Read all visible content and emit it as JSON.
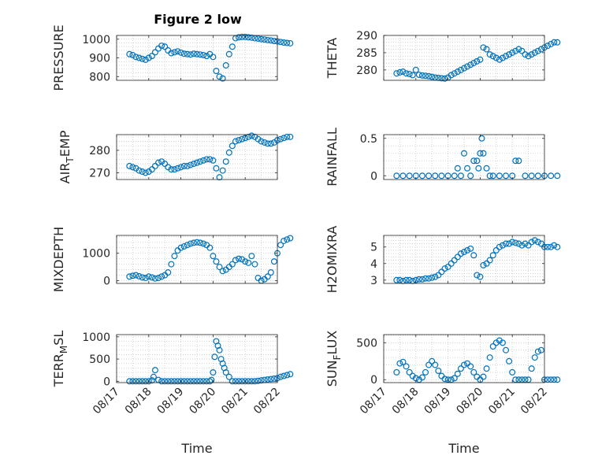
{
  "title": "Figure 2 low",
  "xlabel": "Time",
  "x_ticks": [
    "08/17",
    "08/18",
    "08/19",
    "08/20",
    "08/21",
    "08/22"
  ],
  "marker": "open-circle",
  "series_color": "#0072BD",
  "grid": "dotted",
  "chart_data": [
    {
      "type": "scatter",
      "ylabel": "PRESSURE",
      "ylim": [
        780,
        1020
      ],
      "yticks": [
        800,
        900,
        1000
      ],
      "x": [
        0.4,
        0.5,
        0.6,
        0.7,
        0.8,
        0.9,
        1.0,
        1.1,
        1.2,
        1.3,
        1.4,
        1.5,
        1.6,
        1.7,
        1.8,
        1.9,
        2.0,
        2.1,
        2.2,
        2.3,
        2.4,
        2.5,
        2.6,
        2.7,
        2.8,
        2.9,
        3.0,
        3.1,
        3.2,
        3.3,
        3.4,
        3.5,
        3.6,
        3.7,
        3.8,
        3.9,
        4.0,
        4.1,
        4.2,
        4.3,
        4.4,
        4.5,
        4.6,
        4.7,
        4.8,
        4.9,
        5.0,
        5.1,
        5.2,
        5.3,
        5.4
      ],
      "y": [
        920,
        915,
        905,
        900,
        895,
        890,
        900,
        910,
        930,
        950,
        965,
        960,
        940,
        925,
        930,
        935,
        928,
        922,
        920,
        918,
        922,
        920,
        918,
        915,
        910,
        920,
        905,
        830,
        800,
        790,
        860,
        920,
        960,
        1005,
        1010,
        1012,
        1012,
        1010,
        1008,
        1005,
        1003,
        1000,
        998,
        995,
        993,
        990,
        988,
        985,
        982,
        980,
        978
      ]
    },
    {
      "type": "scatter",
      "ylabel": "THETA",
      "ylim": [
        277,
        290
      ],
      "yticks": [
        280,
        285,
        290
      ],
      "x": [
        0.4,
        0.5,
        0.6,
        0.7,
        0.8,
        0.9,
        1.0,
        1.1,
        1.2,
        1.3,
        1.4,
        1.5,
        1.6,
        1.7,
        1.8,
        1.9,
        2.0,
        2.1,
        2.2,
        2.3,
        2.4,
        2.5,
        2.6,
        2.7,
        2.8,
        2.9,
        3.0,
        3.1,
        3.2,
        3.3,
        3.4,
        3.5,
        3.6,
        3.7,
        3.8,
        3.9,
        4.0,
        4.1,
        4.2,
        4.3,
        4.4,
        4.5,
        4.6,
        4.7,
        4.8,
        4.9,
        5.0,
        5.1,
        5.2,
        5.3,
        5.4
      ],
      "y": [
        279,
        279.3,
        279.5,
        279,
        278.8,
        278.5,
        280,
        278.6,
        278.4,
        278.3,
        278.2,
        278,
        277.8,
        277.7,
        277.6,
        277.5,
        277.8,
        278.5,
        279,
        279.5,
        280,
        280.5,
        281,
        281.5,
        282,
        282.5,
        283,
        286.5,
        286,
        284.5,
        284,
        283.5,
        283,
        283.5,
        284,
        284.5,
        285,
        285.5,
        286,
        285.5,
        284.5,
        284,
        284.5,
        285,
        285.5,
        286,
        286.5,
        287,
        287.5,
        288,
        288
      ]
    },
    {
      "type": "scatter",
      "ylabel": "AIR_TEMP",
      "ylim": [
        267,
        287
      ],
      "yticks": [
        270,
        280
      ],
      "x": [
        0.4,
        0.5,
        0.6,
        0.7,
        0.8,
        0.9,
        1.0,
        1.1,
        1.2,
        1.3,
        1.4,
        1.5,
        1.6,
        1.7,
        1.8,
        1.9,
        2.0,
        2.1,
        2.2,
        2.3,
        2.4,
        2.5,
        2.6,
        2.7,
        2.8,
        2.9,
        3.0,
        3.1,
        3.2,
        3.3,
        3.4,
        3.5,
        3.6,
        3.7,
        3.8,
        3.9,
        4.0,
        4.1,
        4.2,
        4.3,
        4.4,
        4.5,
        4.6,
        4.7,
        4.8,
        4.9,
        5.0,
        5.1,
        5.2,
        5.3,
        5.4
      ],
      "y": [
        273,
        272.5,
        272,
        271,
        270.5,
        270,
        270.5,
        271.5,
        273,
        274.5,
        275,
        274,
        272.5,
        271.5,
        271.5,
        272,
        272.5,
        273,
        273,
        273.5,
        274,
        274.5,
        275,
        275.5,
        276,
        276,
        275.5,
        272,
        268,
        271,
        275,
        279,
        282,
        284,
        284.5,
        285,
        285.5,
        286,
        286.5,
        286,
        285,
        284,
        283.5,
        283,
        283,
        283.5,
        284.5,
        285,
        285.5,
        286,
        286
      ]
    },
    {
      "type": "scatter",
      "ylabel": "RAINFALL",
      "ylim": [
        -0.05,
        0.55
      ],
      "yticks": [
        0,
        0.5
      ],
      "x": [
        0.4,
        0.6,
        0.8,
        1.0,
        1.2,
        1.4,
        1.6,
        1.8,
        2.0,
        2.2,
        2.3,
        2.4,
        2.5,
        2.6,
        2.7,
        2.8,
        2.9,
        2.95,
        3.0,
        3.05,
        3.1,
        3.2,
        3.3,
        3.4,
        3.6,
        3.8,
        4.0,
        4.1,
        4.2,
        4.4,
        4.6,
        4.8,
        5.0,
        5.2,
        5.4
      ],
      "y": [
        0,
        0,
        0,
        0,
        0,
        0,
        0,
        0,
        0,
        0,
        0.1,
        0,
        0.3,
        0.1,
        0,
        0.2,
        0.2,
        0.1,
        0.3,
        0.5,
        0.3,
        0.1,
        0,
        0,
        0,
        0,
        0,
        0.2,
        0.2,
        0,
        0,
        0,
        0,
        0,
        0
      ]
    },
    {
      "type": "scatter",
      "ylabel": "MIXDEPTH",
      "ylim": [
        -100,
        1650
      ],
      "yticks": [
        0,
        1000
      ],
      "x": [
        0.4,
        0.5,
        0.6,
        0.7,
        0.8,
        0.9,
        1.0,
        1.1,
        1.2,
        1.3,
        1.4,
        1.5,
        1.6,
        1.7,
        1.8,
        1.9,
        2.0,
        2.1,
        2.2,
        2.3,
        2.4,
        2.5,
        2.6,
        2.7,
        2.8,
        2.9,
        3.0,
        3.1,
        3.2,
        3.3,
        3.4,
        3.5,
        3.6,
        3.7,
        3.8,
        3.9,
        4.0,
        4.1,
        4.2,
        4.3,
        4.4,
        4.5,
        4.6,
        4.7,
        4.8,
        4.9,
        5.0,
        5.1,
        5.2,
        5.3,
        5.4
      ],
      "y": [
        150,
        180,
        200,
        160,
        120,
        100,
        150,
        120,
        80,
        100,
        150,
        200,
        300,
        600,
        900,
        1100,
        1200,
        1250,
        1300,
        1350,
        1380,
        1400,
        1380,
        1350,
        1300,
        1200,
        900,
        700,
        500,
        350,
        400,
        500,
        600,
        750,
        800,
        780,
        700,
        650,
        900,
        600,
        100,
        0,
        50,
        150,
        300,
        700,
        1000,
        1300,
        1450,
        1500,
        1550
      ]
    },
    {
      "type": "scatter",
      "ylabel": "H2OMIXRA",
      "ylim": [
        2.8,
        5.7
      ],
      "yticks": [
        3,
        4,
        5
      ],
      "x": [
        0.4,
        0.5,
        0.6,
        0.7,
        0.8,
        0.9,
        1.0,
        1.1,
        1.2,
        1.3,
        1.4,
        1.5,
        1.6,
        1.7,
        1.8,
        1.9,
        2.0,
        2.1,
        2.2,
        2.3,
        2.4,
        2.5,
        2.6,
        2.7,
        2.8,
        2.9,
        3.0,
        3.1,
        3.2,
        3.3,
        3.4,
        3.5,
        3.6,
        3.7,
        3.8,
        3.9,
        4.0,
        4.1,
        4.2,
        4.3,
        4.4,
        4.5,
        4.6,
        4.7,
        4.8,
        4.9,
        5.0,
        5.1,
        5.2,
        5.3,
        5.4
      ],
      "y": [
        3.0,
        3.0,
        2.95,
        3.0,
        3.0,
        2.95,
        3.0,
        3.05,
        3.05,
        3.1,
        3.1,
        3.15,
        3.2,
        3.3,
        3.5,
        3.7,
        3.8,
        4.0,
        4.2,
        4.4,
        4.6,
        4.7,
        4.8,
        4.9,
        4.5,
        3.3,
        3.2,
        3.9,
        4.0,
        4.2,
        4.5,
        4.8,
        5.0,
        5.1,
        5.2,
        5.2,
        5.3,
        5.25,
        5.2,
        5.1,
        5.2,
        5.1,
        5.3,
        5.4,
        5.3,
        5.2,
        5.0,
        5.0,
        5.0,
        5.1,
        5.0
      ]
    },
    {
      "type": "scatter",
      "ylabel": "TERR_MSL",
      "ylim": [
        -30,
        1050
      ],
      "yticks": [
        0,
        500,
        1000
      ],
      "x": [
        0.4,
        0.5,
        0.6,
        0.7,
        0.8,
        0.9,
        1.0,
        1.1,
        1.15,
        1.2,
        1.3,
        1.4,
        1.5,
        1.6,
        1.7,
        1.8,
        1.9,
        2.0,
        2.1,
        2.2,
        2.3,
        2.4,
        2.5,
        2.6,
        2.7,
        2.8,
        2.9,
        2.95,
        3.0,
        3.05,
        3.1,
        3.15,
        3.2,
        3.25,
        3.3,
        3.35,
        3.4,
        3.5,
        3.6,
        3.7,
        3.8,
        3.9,
        4.0,
        4.1,
        4.2,
        4.3,
        4.4,
        4.5,
        4.6,
        4.7,
        4.8,
        4.9,
        5.0,
        5.1,
        5.2,
        5.3,
        5.4
      ],
      "y": [
        0,
        0,
        0,
        0,
        0,
        0,
        0,
        20,
        100,
        250,
        30,
        0,
        0,
        0,
        0,
        0,
        0,
        0,
        0,
        0,
        0,
        0,
        0,
        0,
        0,
        0,
        0,
        30,
        200,
        550,
        900,
        800,
        700,
        500,
        400,
        300,
        200,
        100,
        0,
        0,
        0,
        0,
        0,
        0,
        0,
        0,
        10,
        20,
        30,
        40,
        50,
        60,
        70,
        100,
        120,
        140,
        160
      ]
    },
    {
      "type": "scatter",
      "ylabel": "SUN_FLUX",
      "ylim": [
        -40,
        610
      ],
      "yticks": [
        0,
        500
      ],
      "x": [
        0.4,
        0.5,
        0.6,
        0.7,
        0.8,
        0.9,
        1.0,
        1.1,
        1.2,
        1.3,
        1.4,
        1.5,
        1.6,
        1.7,
        1.8,
        1.9,
        2.0,
        2.1,
        2.2,
        2.3,
        2.4,
        2.5,
        2.6,
        2.7,
        2.8,
        2.9,
        3.0,
        3.1,
        3.2,
        3.3,
        3.4,
        3.5,
        3.6,
        3.7,
        3.8,
        3.9,
        4.0,
        4.1,
        4.2,
        4.3,
        4.4,
        4.5,
        4.6,
        4.7,
        4.8,
        4.9,
        5.0,
        5.1,
        5.2,
        5.3,
        5.4
      ],
      "y": [
        100,
        220,
        240,
        180,
        100,
        50,
        20,
        0,
        30,
        100,
        200,
        250,
        200,
        120,
        50,
        10,
        0,
        0,
        20,
        80,
        150,
        200,
        220,
        180,
        100,
        40,
        0,
        40,
        150,
        300,
        450,
        500,
        530,
        500,
        400,
        250,
        100,
        0,
        0,
        0,
        0,
        0,
        150,
        300,
        380,
        400,
        0,
        0,
        0,
        0,
        0
      ]
    }
  ]
}
